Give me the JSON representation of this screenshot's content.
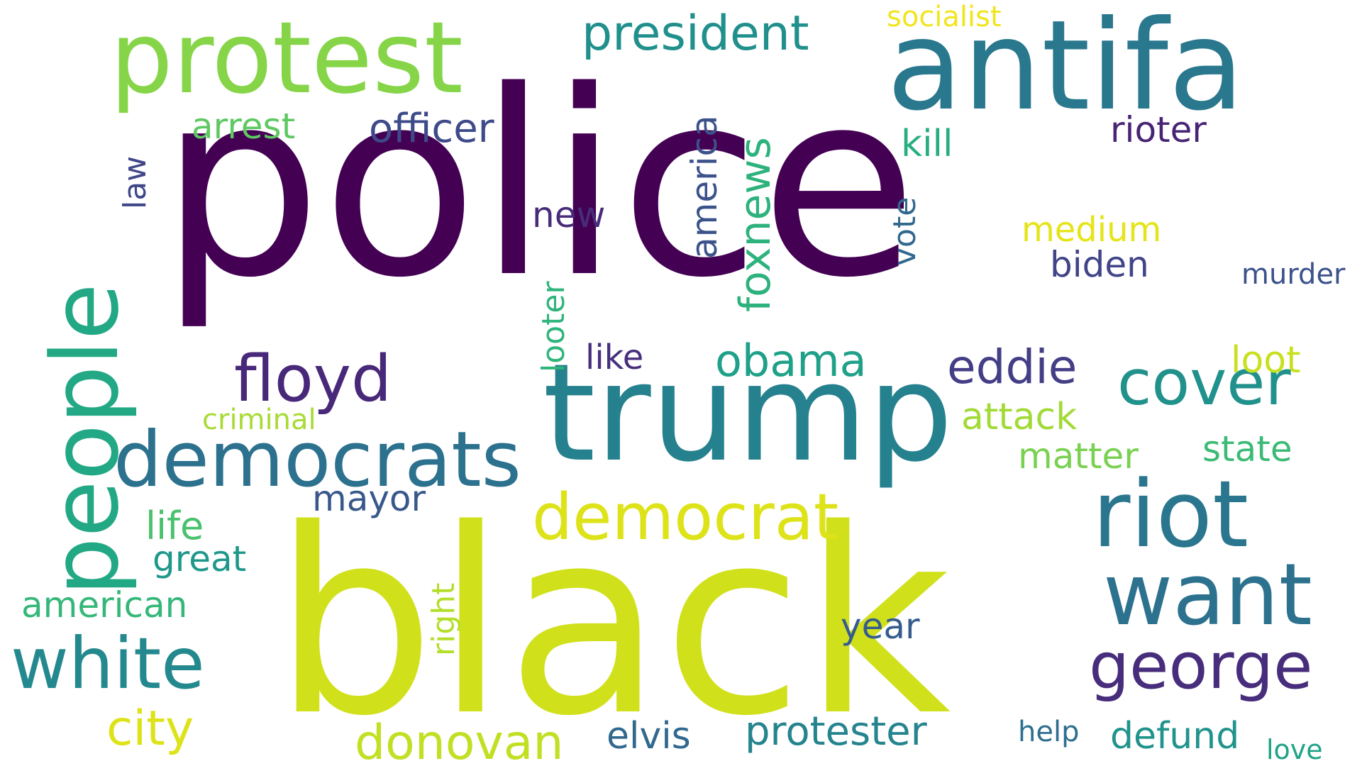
{
  "word_cloud": {
    "palette": "viridis",
    "words": [
      {
        "text": "police",
        "color": "#440154"
      },
      {
        "text": "black",
        "color": "#d0e11c"
      },
      {
        "text": "antifa",
        "color": "#2a788e"
      },
      {
        "text": "trump",
        "color": "#26818e"
      },
      {
        "text": "protest",
        "color": "#86d549"
      },
      {
        "text": "people",
        "color": "#22a884"
      },
      {
        "text": "democrats",
        "color": "#2c718e"
      },
      {
        "text": "riot",
        "color": "#2a768e"
      },
      {
        "text": "want",
        "color": "#2c728e"
      },
      {
        "text": "white",
        "color": "#23898e"
      },
      {
        "text": "george",
        "color": "#472d7b"
      },
      {
        "text": "democrat",
        "color": "#dde318"
      },
      {
        "text": "cover",
        "color": "#21918c"
      },
      {
        "text": "floyd",
        "color": "#482878"
      },
      {
        "text": "president",
        "color": "#21908d"
      },
      {
        "text": "eddie",
        "color": "#433e85"
      },
      {
        "text": "obama",
        "color": "#1fa088"
      },
      {
        "text": "foxnews",
        "color": "#2db27d"
      },
      {
        "text": "america",
        "color": "#3b528b"
      },
      {
        "text": "donovan",
        "color": "#c2df23"
      },
      {
        "text": "protester",
        "color": "#25848e"
      },
      {
        "text": "city",
        "color": "#dde318"
      },
      {
        "text": "defund",
        "color": "#20938c"
      },
      {
        "text": "elvis",
        "color": "#31688e"
      },
      {
        "text": "arrest",
        "color": "#5ec962"
      },
      {
        "text": "officer",
        "color": "#3e4a89"
      },
      {
        "text": "rioter",
        "color": "#482475"
      },
      {
        "text": "law",
        "color": "#3f4788"
      },
      {
        "text": "kill",
        "color": "#27ad81"
      },
      {
        "text": "new",
        "color": "#472c7a"
      },
      {
        "text": "vote",
        "color": "#31688e"
      },
      {
        "text": "medium",
        "color": "#e5e419"
      },
      {
        "text": "biden",
        "color": "#414487"
      },
      {
        "text": "murder",
        "color": "#3b528b"
      },
      {
        "text": "looter",
        "color": "#2fb47c"
      },
      {
        "text": "like",
        "color": "#472f7d"
      },
      {
        "text": "loot",
        "color": "#c8e020"
      },
      {
        "text": "attack",
        "color": "#a2da37"
      },
      {
        "text": "matter",
        "color": "#7ad151"
      },
      {
        "text": "state",
        "color": "#3bbb75"
      },
      {
        "text": "criminal",
        "color": "#a8db34"
      },
      {
        "text": "mayor",
        "color": "#38588c"
      },
      {
        "text": "life",
        "color": "#4ac16d"
      },
      {
        "text": "great",
        "color": "#1f988b"
      },
      {
        "text": "american",
        "color": "#35b779"
      },
      {
        "text": "right",
        "color": "#b5de2b"
      },
      {
        "text": "year",
        "color": "#365c8d"
      },
      {
        "text": "help",
        "color": "#2e6e8e"
      },
      {
        "text": "love",
        "color": "#20a386"
      },
      {
        "text": "socialist",
        "color": "#f1e51d"
      }
    ]
  }
}
